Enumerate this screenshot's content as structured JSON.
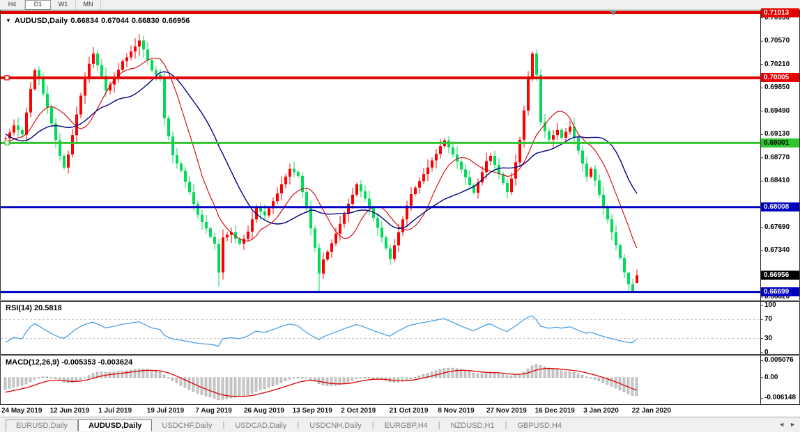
{
  "toolbar": {
    "buttons": [
      {
        "label": "H4",
        "active": false
      },
      {
        "label": "D1",
        "active": true
      },
      {
        "label": "W1",
        "active": false
      },
      {
        "label": "MN",
        "active": false
      }
    ]
  },
  "chart_header": {
    "dropdown_icon": "▼",
    "symbol": "AUDUSD,Daily",
    "open": "0.66834",
    "high": "0.67044",
    "low": "0.66830",
    "close": "0.66956"
  },
  "price_axis": {
    "ticks": [
      {
        "label": "0.70930",
        "value": 0.7093
      },
      {
        "label": "0.70570",
        "value": 0.7057
      },
      {
        "label": "0.70210",
        "value": 0.7021
      },
      {
        "label": "0.69850",
        "value": 0.6985
      },
      {
        "label": "0.69490",
        "value": 0.6949
      },
      {
        "label": "0.69130",
        "value": 0.6913
      },
      {
        "label": "0.68770",
        "value": 0.6877
      },
      {
        "label": "0.68410",
        "value": 0.6841
      },
      {
        "label": "0.67690",
        "value": 0.6769
      },
      {
        "label": "0.67340",
        "value": 0.6734
      },
      {
        "label": "0.66620",
        "value": 0.6662
      }
    ]
  },
  "chart_data": {
    "type": "candlestick",
    "symbol": "AUDUSD",
    "timeframe": "Daily",
    "title": "AUDUSD,Daily",
    "last_ohlc": {
      "open": 0.66834,
      "high": 0.67044,
      "low": 0.6683,
      "close": 0.66956
    },
    "y_range": [
      0.6662,
      0.71013
    ],
    "up_color": "#FF0000",
    "down_color": "#00DC5A",
    "x_dates": [
      "24 May 2019",
      "12 Jun 2019",
      "1 Jul 2019",
      "19 Jul 2019",
      "7 Aug 2019",
      "26 Aug 2019",
      "13 Sep 2019",
      "2 Oct 2019",
      "21 Oct 2019",
      "8 Nov 2019",
      "27 Nov 2019",
      "16 Dec 2019",
      "3 Jan 2020",
      "22 Jan 2020"
    ],
    "closes": [
      0.6907,
      0.6916,
      0.6927,
      0.692,
      0.6913,
      0.6947,
      0.6983,
      0.7012,
      0.6999,
      0.6976,
      0.6955,
      0.693,
      0.6904,
      0.688,
      0.6862,
      0.6882,
      0.6912,
      0.6944,
      0.6973,
      0.7001,
      0.7022,
      0.7038,
      0.702,
      0.7003,
      0.6981,
      0.699,
      0.7001,
      0.7013,
      0.7026,
      0.7032,
      0.7041,
      0.7049,
      0.7058,
      0.7044,
      0.7028,
      0.7012,
      0.7005,
      0.6999,
      0.6938,
      0.691,
      0.6881,
      0.6868,
      0.6857,
      0.684,
      0.6824,
      0.6806,
      0.6789,
      0.6778,
      0.6768,
      0.6755,
      0.6744,
      0.67,
      0.6754,
      0.6758,
      0.6762,
      0.6752,
      0.6744,
      0.6752,
      0.6763,
      0.6782,
      0.68,
      0.6794,
      0.6788,
      0.6799,
      0.681,
      0.6822,
      0.6836,
      0.6848,
      0.686,
      0.6855,
      0.6849,
      0.6824,
      0.6799,
      0.6768,
      0.6738,
      0.6698,
      0.672,
      0.6732,
      0.6745,
      0.676,
      0.6775,
      0.679,
      0.6806,
      0.682,
      0.6836,
      0.6825,
      0.6814,
      0.6799,
      0.6784,
      0.6769,
      0.6754,
      0.6737,
      0.6721,
      0.6742,
      0.6762,
      0.6782,
      0.6803,
      0.6821,
      0.6831,
      0.6841,
      0.6852,
      0.6862,
      0.6873,
      0.6883,
      0.6895,
      0.6904,
      0.6893,
      0.6882,
      0.6871,
      0.6859,
      0.6847,
      0.6835,
      0.6823,
      0.6839,
      0.6855,
      0.6872,
      0.688,
      0.6866,
      0.6852,
      0.6838,
      0.6824,
      0.6845,
      0.687,
      0.6905,
      0.695,
      0.7,
      0.7038,
      0.7005,
      0.6932,
      0.6918,
      0.6905,
      0.6912,
      0.692,
      0.6908,
      0.6917,
      0.6925,
      0.6908,
      0.6888,
      0.6868,
      0.6848,
      0.686,
      0.6842,
      0.682,
      0.68,
      0.6782,
      0.6762,
      0.6742,
      0.6722,
      0.67,
      0.6682,
      0.6671,
      0.66956
    ],
    "indicator_warmup_closes": [
      0.712,
      0.71,
      0.7078,
      0.7056,
      0.7034,
      0.7012,
      0.699,
      0.6968,
      0.6946,
      0.6928,
      0.691,
      0.6895,
      0.6886,
      0.6892,
      0.6885,
      0.6894,
      0.689,
      0.6898,
      0.6893,
      0.6901,
      0.6896,
      0.6903,
      0.6898,
      0.6905,
      0.69,
      0.6906
    ],
    "wick_overrides": {
      "21": [
        0.7048,
        0.7015
      ],
      "32": [
        0.7068,
        0.7035
      ],
      "51": [
        0.6752,
        0.6678
      ],
      "75": [
        0.6745,
        0.667
      ],
      "126": [
        0.7042,
        0.6995
      ],
      "149": [
        0.67,
        0.667
      ],
      "150": [
        0.669,
        0.6668
      ],
      "151": [
        0.67044,
        0.6683
      ]
    },
    "ma_fast": {
      "type": "sma",
      "period": 10,
      "color": "#D40000"
    },
    "ma_slow": {
      "type": "sma",
      "period": 22,
      "color": "#000080"
    },
    "hlines": [
      {
        "label": "0.71013",
        "price": 0.71013,
        "color": "#E60000",
        "width": 4,
        "label_bg": "#E60000",
        "label_fg": "#ffffff",
        "anchor": false
      },
      {
        "label": "0.70005",
        "price": 0.70005,
        "color": "#E60000",
        "width": 4,
        "label_bg": "#E60000",
        "label_fg": "#ffffff",
        "anchor": true
      },
      {
        "label": "0.69001",
        "price": 0.69001,
        "color": "#2FC52F",
        "width": 3,
        "label_bg": "#2FC52F",
        "label_fg": "#000000",
        "anchor": true
      },
      {
        "label": "0.68008",
        "price": 0.68008,
        "color": "#0000C0",
        "width": 3,
        "label_bg": "#0000C0",
        "label_fg": "#ffffff",
        "anchor": false
      },
      {
        "label": "0.66699",
        "price": 0.66699,
        "color": "#0000C0",
        "width": 3,
        "label_bg": "#0000C0",
        "label_fg": "#ffffff",
        "anchor": false
      }
    ],
    "current_price": {
      "label": "0.66956",
      "value": 0.66956,
      "label_bg": "#000000",
      "label_fg": "#ffffff"
    },
    "rsi": {
      "name": "RSI(14)",
      "value_text": "20.5818",
      "period": 14,
      "levels": [
        30,
        70
      ],
      "range": [
        0,
        100
      ],
      "axis_labels": [
        {
          "label": "100",
          "value": 100
        },
        {
          "label": "70",
          "value": 70
        },
        {
          "label": "30",
          "value": 30
        },
        {
          "label": "0",
          "value": 0
        }
      ],
      "color": "#4C9FE8",
      "level_color": "#C0C0C0"
    },
    "macd": {
      "name": "MACD(12,26,9)",
      "values_text": "-0.005353 -0.003624",
      "fast": 12,
      "slow": 26,
      "signal": 9,
      "range": [
        -0.0075,
        0.0062
      ],
      "axis_labels": [
        {
          "label": "0.005076",
          "value": 0.005076
        },
        {
          "label": "0.00",
          "value": 0
        },
        {
          "label": "-0.006148",
          "value": -0.006148
        }
      ],
      "hist_fill": "#CCCCCC",
      "hist_stroke": "#9B9B9B",
      "signal_color": "#DC0000"
    }
  },
  "tabs": {
    "items": [
      {
        "label": "EURUSD,Daily",
        "active": false,
        "boxed": true
      },
      {
        "label": "AUDUSD,Daily",
        "active": true,
        "boxed": true
      },
      {
        "label": "USDCHF,Daily",
        "active": false,
        "boxed": false
      },
      {
        "label": "USDCAD,Daily",
        "active": false,
        "boxed": false
      },
      {
        "label": "USDCNH,Daily",
        "active": false,
        "boxed": false
      },
      {
        "label": "EURGBP,H4",
        "active": false,
        "boxed": false
      },
      {
        "label": "NZDUSD,H1",
        "active": false,
        "boxed": false
      },
      {
        "label": "GBPUSD,H4",
        "active": false,
        "boxed": false
      }
    ],
    "nav_left": "◄",
    "nav_right": "►"
  }
}
